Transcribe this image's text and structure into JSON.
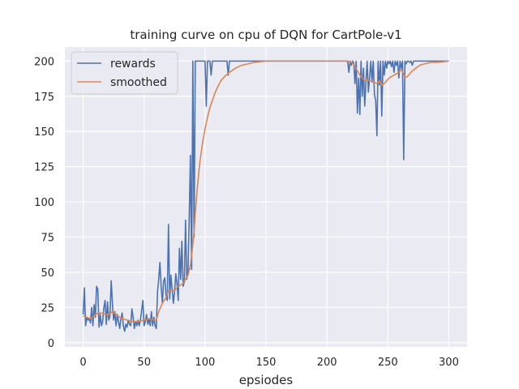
{
  "chart_data": {
    "type": "line",
    "title": "training curve on cpu of DQN for CartPole-v1",
    "xlabel": "epsiodes",
    "ylabel": "",
    "xlim": [
      -15,
      315
    ],
    "ylim": [
      -3,
      210
    ],
    "xticks": [
      0,
      50,
      100,
      150,
      200,
      250,
      300
    ],
    "yticks": [
      0,
      25,
      50,
      75,
      100,
      125,
      150,
      175,
      200
    ],
    "grid": true,
    "background": "#eaeaf2",
    "legend_position": "top-left",
    "series": [
      {
        "name": "rewards",
        "color": "#4c72b0",
        "points": [
          [
            0,
            20
          ],
          [
            1,
            39
          ],
          [
            2,
            12
          ],
          [
            3,
            18
          ],
          [
            4,
            16
          ],
          [
            5,
            17
          ],
          [
            6,
            14
          ],
          [
            7,
            25
          ],
          [
            8,
            12
          ],
          [
            9,
            27
          ],
          [
            10,
            18
          ],
          [
            11,
            40
          ],
          [
            12,
            38
          ],
          [
            13,
            11
          ],
          [
            14,
            20
          ],
          [
            15,
            12
          ],
          [
            16,
            15
          ],
          [
            17,
            25
          ],
          [
            18,
            30
          ],
          [
            19,
            13
          ],
          [
            20,
            29
          ],
          [
            21,
            16
          ],
          [
            22,
            19
          ],
          [
            23,
            44
          ],
          [
            24,
            28
          ],
          [
            25,
            16
          ],
          [
            26,
            22
          ],
          [
            27,
            12
          ],
          [
            28,
            20
          ],
          [
            29,
            15
          ],
          [
            30,
            10
          ],
          [
            31,
            17
          ],
          [
            32,
            21
          ],
          [
            33,
            12
          ],
          [
            34,
            8
          ],
          [
            35,
            13
          ],
          [
            36,
            11
          ],
          [
            37,
            16
          ],
          [
            38,
            13
          ],
          [
            39,
            12
          ],
          [
            40,
            24
          ],
          [
            41,
            18
          ],
          [
            42,
            10
          ],
          [
            43,
            15
          ],
          [
            44,
            12
          ],
          [
            45,
            16
          ],
          [
            46,
            12
          ],
          [
            47,
            16
          ],
          [
            48,
            23
          ],
          [
            49,
            30
          ],
          [
            50,
            12
          ],
          [
            51,
            15
          ],
          [
            52,
            20
          ],
          [
            53,
            13
          ],
          [
            54,
            17
          ],
          [
            55,
            12
          ],
          [
            56,
            22
          ],
          [
            57,
            12
          ],
          [
            58,
            18
          ],
          [
            59,
            12
          ],
          [
            60,
            10
          ],
          [
            61,
            36
          ],
          [
            62,
            45
          ],
          [
            63,
            57
          ],
          [
            64,
            40
          ],
          [
            65,
            28
          ],
          [
            66,
            44
          ],
          [
            67,
            46
          ],
          [
            68,
            33
          ],
          [
            69,
            30
          ],
          [
            70,
            84
          ],
          [
            71,
            31
          ],
          [
            72,
            48
          ],
          [
            73,
            38
          ],
          [
            74,
            28
          ],
          [
            75,
            36
          ],
          [
            76,
            49
          ],
          [
            77,
            42
          ],
          [
            78,
            30
          ],
          [
            79,
            67
          ],
          [
            80,
            45
          ],
          [
            81,
            72
          ],
          [
            82,
            40
          ],
          [
            83,
            43
          ],
          [
            84,
            87
          ],
          [
            85,
            45
          ],
          [
            86,
            50
          ],
          [
            87,
            88
          ],
          [
            88,
            133
          ],
          [
            89,
            52
          ],
          [
            90,
            200
          ],
          [
            91,
            75
          ],
          [
            92,
            200
          ],
          [
            93,
            200
          ],
          [
            94,
            200
          ],
          [
            95,
            200
          ],
          [
            96,
            200
          ],
          [
            97,
            200
          ],
          [
            98,
            200
          ],
          [
            99,
            200
          ],
          [
            100,
            200
          ],
          [
            101,
            168
          ],
          [
            102,
            200
          ],
          [
            103,
            200
          ],
          [
            104,
            200
          ],
          [
            105,
            190
          ],
          [
            106,
            200
          ],
          [
            107,
            200
          ],
          [
            108,
            200
          ],
          [
            109,
            200
          ],
          [
            110,
            200
          ],
          [
            115,
            200
          ],
          [
            118,
            200
          ],
          [
            119,
            190
          ],
          [
            120,
            200
          ],
          [
            130,
            200
          ],
          [
            150,
            200
          ],
          [
            175,
            200
          ],
          [
            200,
            200
          ],
          [
            215,
            200
          ],
          [
            217,
            200
          ],
          [
            218,
            192
          ],
          [
            219,
            200
          ],
          [
            220,
            197
          ],
          [
            221,
            200
          ],
          [
            222,
            199
          ],
          [
            223,
            184
          ],
          [
            224,
            200
          ],
          [
            225,
            163
          ],
          [
            226,
            188
          ],
          [
            227,
            162
          ],
          [
            228,
            200
          ],
          [
            229,
            175
          ],
          [
            230,
            195
          ],
          [
            231,
            168
          ],
          [
            232,
            185
          ],
          [
            233,
            200
          ],
          [
            234,
            178
          ],
          [
            235,
            188
          ],
          [
            236,
            200
          ],
          [
            237,
            185
          ],
          [
            238,
            200
          ],
          [
            239,
            176
          ],
          [
            240,
            172
          ],
          [
            241,
            147
          ],
          [
            242,
            200
          ],
          [
            243,
            183
          ],
          [
            244,
            200
          ],
          [
            245,
            161
          ],
          [
            246,
            200
          ],
          [
            247,
            190
          ],
          [
            248,
            200
          ],
          [
            249,
            195
          ],
          [
            250,
            200
          ],
          [
            251,
            198
          ],
          [
            252,
            200
          ],
          [
            253,
            196
          ],
          [
            254,
            200
          ],
          [
            255,
            192
          ],
          [
            256,
            200
          ],
          [
            257,
            197
          ],
          [
            258,
            200
          ],
          [
            259,
            188
          ],
          [
            260,
            200
          ],
          [
            261,
            195
          ],
          [
            262,
            200
          ],
          [
            263,
            130
          ],
          [
            264,
            200
          ],
          [
            265,
            198
          ],
          [
            266,
            200
          ],
          [
            267,
            200
          ],
          [
            268,
            199
          ],
          [
            269,
            200
          ],
          [
            270,
            197
          ],
          [
            271,
            200
          ],
          [
            280,
            200
          ],
          [
            290,
            200
          ],
          [
            300,
            200
          ]
        ]
      },
      {
        "name": "smoothed",
        "color": "#dd8452",
        "points": [
          [
            0,
            19
          ],
          [
            3,
            18
          ],
          [
            6,
            17
          ],
          [
            9,
            19
          ],
          [
            12,
            21
          ],
          [
            15,
            21
          ],
          [
            18,
            20
          ],
          [
            21,
            20
          ],
          [
            24,
            22
          ],
          [
            27,
            20
          ],
          [
            30,
            18
          ],
          [
            33,
            17
          ],
          [
            36,
            16
          ],
          [
            40,
            15
          ],
          [
            45,
            15
          ],
          [
            50,
            16
          ],
          [
            55,
            17
          ],
          [
            58,
            16
          ],
          [
            60,
            16
          ],
          [
            62,
            22
          ],
          [
            65,
            28
          ],
          [
            68,
            32
          ],
          [
            70,
            37
          ],
          [
            72,
            37
          ],
          [
            75,
            37
          ],
          [
            78,
            40
          ],
          [
            80,
            41
          ],
          [
            82,
            42
          ],
          [
            84,
            45
          ],
          [
            86,
            48
          ],
          [
            88,
            55
          ],
          [
            89,
            62
          ],
          [
            90,
            70
          ],
          [
            91,
            79
          ],
          [
            92,
            92
          ],
          [
            93,
            103
          ],
          [
            94,
            113
          ],
          [
            95,
            122
          ],
          [
            96,
            130
          ],
          [
            98,
            142
          ],
          [
            100,
            152
          ],
          [
            102,
            160
          ],
          [
            104,
            167
          ],
          [
            106,
            172
          ],
          [
            108,
            177
          ],
          [
            110,
            181
          ],
          [
            113,
            186
          ],
          [
            116,
            189
          ],
          [
            120,
            192
          ],
          [
            125,
            195
          ],
          [
            130,
            197
          ],
          [
            135,
            198
          ],
          [
            140,
            199
          ],
          [
            150,
            200
          ],
          [
            200,
            200
          ],
          [
            217,
            200
          ],
          [
            219,
            199
          ],
          [
            221,
            199
          ],
          [
            223,
            196
          ],
          [
            225,
            193
          ],
          [
            227,
            190
          ],
          [
            229,
            188
          ],
          [
            231,
            186
          ],
          [
            233,
            187
          ],
          [
            235,
            186
          ],
          [
            237,
            186
          ],
          [
            239,
            185
          ],
          [
            241,
            184
          ],
          [
            243,
            186
          ],
          [
            245,
            183
          ],
          [
            247,
            184
          ],
          [
            249,
            186
          ],
          [
            251,
            188
          ],
          [
            253,
            189
          ],
          [
            255,
            190
          ],
          [
            257,
            191
          ],
          [
            259,
            192
          ],
          [
            261,
            194
          ],
          [
            263,
            191
          ],
          [
            264,
            188
          ],
          [
            266,
            189
          ],
          [
            268,
            191
          ],
          [
            270,
            193
          ],
          [
            273,
            195
          ],
          [
            276,
            197
          ],
          [
            280,
            198
          ],
          [
            285,
            199
          ],
          [
            290,
            199
          ],
          [
            300,
            200
          ]
        ]
      }
    ]
  }
}
